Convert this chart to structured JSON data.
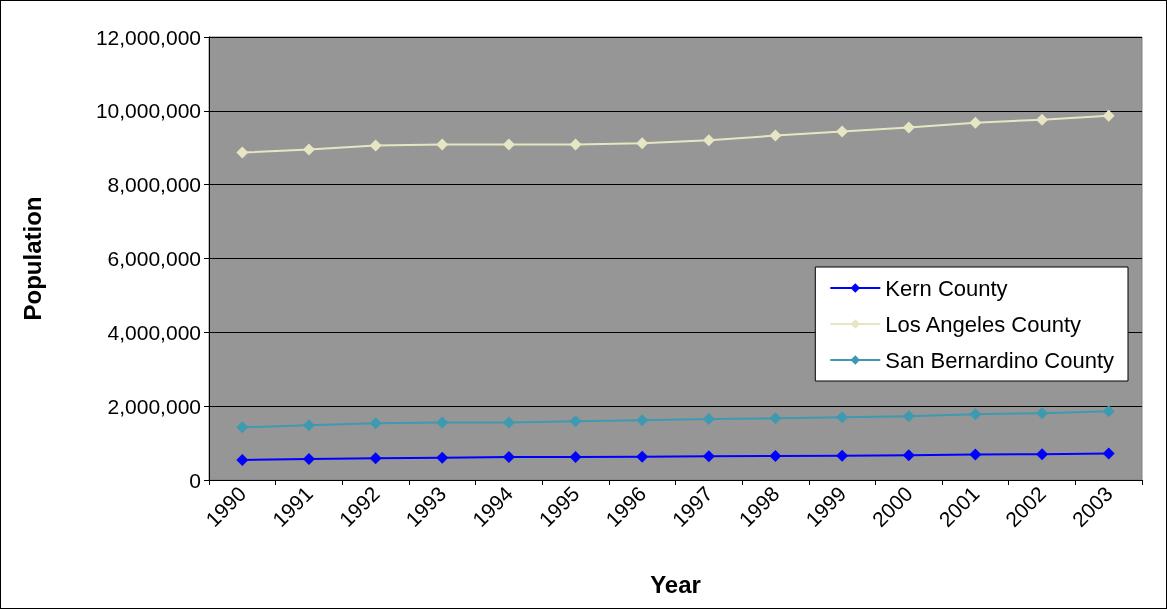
{
  "chart_data": {
    "type": "line",
    "xlabel": "Year",
    "ylabel": "Population",
    "categories": [
      "1990",
      "1991",
      "1992",
      "1993",
      "1994",
      "1995",
      "1996",
      "1997",
      "1998",
      "1999",
      "2000",
      "2001",
      "2002",
      "2003"
    ],
    "series": [
      {
        "name": "Kern County",
        "color": "#0000ff",
        "values": [
          540000,
          570000,
          590000,
          600000,
          620000,
          620000,
          630000,
          640000,
          650000,
          660000,
          670000,
          690000,
          700000,
          720000
        ]
      },
      {
        "name": "Los Angeles County",
        "color": "#e6e6c4",
        "values": [
          8870000,
          8950000,
          9060000,
          9090000,
          9090000,
          9090000,
          9120000,
          9200000,
          9330000,
          9440000,
          9550000,
          9680000,
          9760000,
          9870000
        ]
      },
      {
        "name": "San Bernardino County",
        "color": "#3e9ab0",
        "values": [
          1430000,
          1480000,
          1540000,
          1560000,
          1560000,
          1590000,
          1620000,
          1650000,
          1670000,
          1700000,
          1730000,
          1780000,
          1810000,
          1860000
        ]
      }
    ],
    "ylim": [
      0,
      12000000
    ],
    "yticks": [
      0,
      {
        "value": 2000000,
        "label": "2,000,000"
      },
      {
        "value": 4000000,
        "label": "4,000,000"
      },
      {
        "value": 6000000,
        "label": "6,000,000"
      },
      {
        "value": 8000000,
        "label": "8,000,000"
      },
      {
        "value": 10000000,
        "label": "10,000,000"
      },
      {
        "value": 12000000,
        "label": "12,000,000"
      }
    ],
    "grid": "y",
    "legend": "right",
    "marker": "diamond",
    "line_style": "solid"
  }
}
